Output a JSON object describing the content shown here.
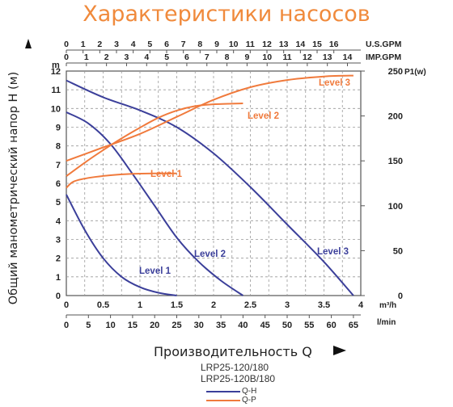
{
  "page": {
    "title": "Характеристики насосов",
    "ylabel": "Общий манометрический напор H (м)",
    "xlabel": "Производительность Q",
    "model_line1": "LRP25-120/180",
    "model_line2": "LRP25-120B/180",
    "legend": [
      {
        "label": "Q-H",
        "color": "#3b3f9a"
      },
      {
        "label": "Q-P",
        "color": "#f07a3c"
      }
    ]
  },
  "chart_data": {
    "type": "line",
    "colors": {
      "qh": "#3b3f9a",
      "qp": "#f07a3c",
      "grid": "#999999",
      "text": "#222222"
    },
    "axes": {
      "x_main": {
        "unit": "m³/h",
        "range": [
          0,
          4
        ],
        "ticks": [
          "0",
          "0.5",
          "1",
          "1.5",
          "2",
          "2.5",
          "3",
          "3.5",
          "4"
        ]
      },
      "x_lmin": {
        "unit": "l/min",
        "ticks": [
          "0",
          "5",
          "10",
          "15",
          "20",
          "25",
          "30",
          "35",
          "40",
          "45",
          "50",
          "55",
          "60",
          "65"
        ]
      },
      "x_us_gpm": {
        "unit": "U.S.GPM",
        "ticks": [
          "0",
          "1",
          "2",
          "3",
          "4",
          "5",
          "6",
          "7",
          "8",
          "9",
          "10",
          "11",
          "12",
          "13",
          "14",
          "15",
          "16"
        ]
      },
      "x_imp_gpm": {
        "unit": "IMP.GPM",
        "ticks": [
          "0",
          "1",
          "2",
          "3",
          "4",
          "5",
          "6",
          "7",
          "8",
          "9",
          "10",
          "11",
          "12",
          "13",
          "14"
        ]
      },
      "y_left": {
        "unit": "m",
        "range": [
          0,
          12
        ],
        "ticks": [
          "0",
          "1",
          "2",
          "3",
          "4",
          "5",
          "6",
          "7",
          "8",
          "9",
          "10",
          "11",
          "12"
        ]
      },
      "y_right": {
        "unit": "P1(w)",
        "range": [
          0,
          250
        ],
        "ticks": [
          "0",
          "50",
          "100",
          "150",
          "200",
          "250"
        ]
      }
    },
    "grid": true,
    "series": [
      {
        "name": "Level 1",
        "kind": "Q-H",
        "x": [
          0,
          0.25,
          0.5,
          0.75,
          1.0,
          1.25,
          1.5
        ],
        "y": [
          5.4,
          3.5,
          2.0,
          1.0,
          0.45,
          0.15,
          0
        ]
      },
      {
        "name": "Level 2",
        "kind": "Q-H",
        "x": [
          0,
          0.3,
          0.6,
          0.9,
          1.2,
          1.5,
          1.8,
          2.1,
          2.4
        ],
        "y": [
          9.8,
          9.2,
          8.1,
          6.5,
          4.8,
          3.1,
          1.8,
          0.8,
          0
        ]
      },
      {
        "name": "Level 3",
        "kind": "Q-H",
        "x": [
          0,
          0.5,
          1.0,
          1.5,
          2.0,
          2.5,
          3.0,
          3.5,
          3.9
        ],
        "y": [
          11.5,
          10.6,
          9.9,
          9.0,
          7.6,
          5.8,
          3.8,
          1.8,
          0
        ]
      },
      {
        "name": "Level 1",
        "kind": "Q-P",
        "x": [
          0,
          0.1,
          0.3,
          0.6,
          0.9,
          1.2,
          1.5
        ],
        "y": [
          120,
          127,
          131,
          134,
          135.5,
          136,
          136
        ]
      },
      {
        "name": "Level 2",
        "kind": "Q-P",
        "x": [
          0,
          0.25,
          0.5,
          0.75,
          1.0,
          1.25,
          1.5,
          1.75,
          2.0,
          2.4
        ],
        "y": [
          133,
          148,
          162,
          175,
          187,
          198,
          206,
          211,
          213,
          214
        ]
      },
      {
        "name": "Level 3",
        "kind": "Q-P",
        "x": [
          0,
          0.5,
          1.0,
          1.5,
          2.0,
          2.5,
          3.0,
          3.5,
          3.9
        ],
        "y": [
          150,
          165,
          180,
          199,
          218,
          232,
          240,
          244,
          245
        ]
      }
    ]
  }
}
